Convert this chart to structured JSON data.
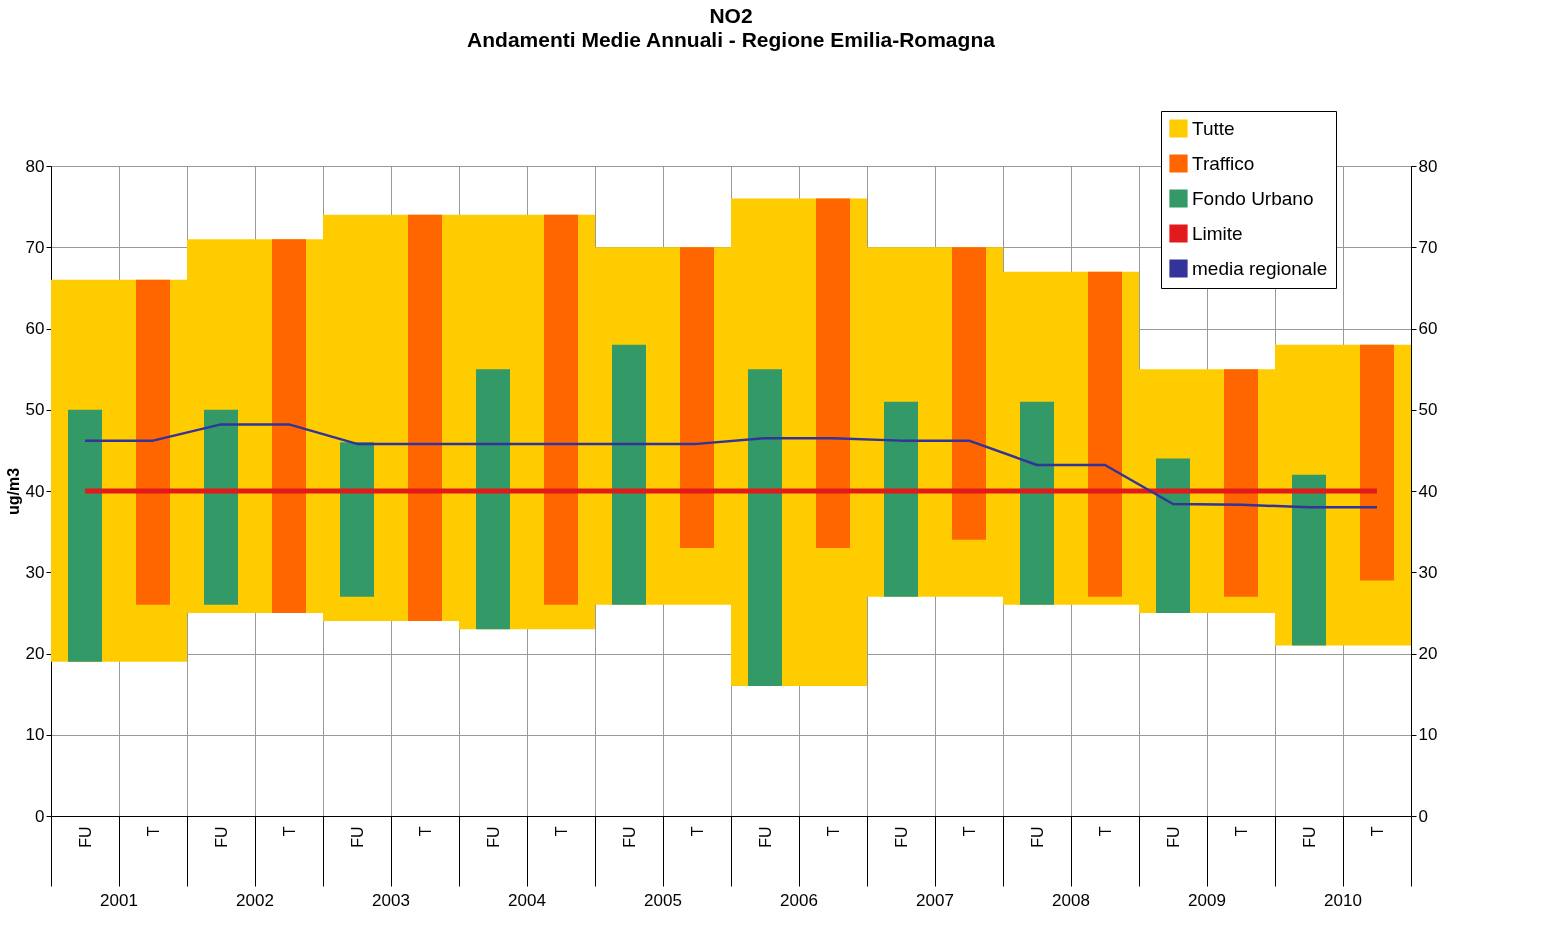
{
  "chart_data": {
    "type": "bar",
    "title": "NO2",
    "subtitle": "Andamenti Medie Annuali  - Regione Emilia-Romagna",
    "ylabel": "ug/m3",
    "categories": [
      "FU",
      "T",
      "FU",
      "T",
      "FU",
      "T",
      "FU",
      "T",
      "FU",
      "T",
      "FU",
      "T",
      "FU",
      "T",
      "FU",
      "T",
      "FU",
      "T",
      "FU",
      "T"
    ],
    "annotations": [
      "2001",
      "2002",
      "2003",
      "2004",
      "2005",
      "2006",
      "2007",
      "2008",
      "2009",
      "2010"
    ],
    "series": [
      {
        "name": "Tutte",
        "color": "#ffcc00",
        "base": [
          19,
          19,
          25,
          25,
          24,
          24,
          23,
          23,
          26,
          26,
          16,
          16,
          27,
          27,
          26,
          26,
          25,
          25,
          21,
          21
        ],
        "values": [
          47,
          47,
          46,
          46,
          50,
          50,
          51,
          51,
          44,
          44,
          60,
          60,
          43,
          43,
          41,
          41,
          30,
          30,
          37,
          37
        ]
      },
      {
        "name": "Traffico",
        "color": "#ff6600",
        "base": [
          null,
          26,
          null,
          25,
          null,
          24,
          null,
          26,
          null,
          33,
          null,
          33,
          null,
          34,
          null,
          27,
          null,
          27,
          null,
          29
        ],
        "values": [
          null,
          40,
          null,
          46,
          null,
          50,
          null,
          48,
          null,
          37,
          null,
          43,
          null,
          36,
          null,
          40,
          null,
          28,
          null,
          29
        ]
      },
      {
        "name": "Fondo Urbano",
        "color": "#339966",
        "base": [
          19,
          null,
          26,
          null,
          27,
          null,
          23,
          null,
          26,
          null,
          16,
          null,
          27,
          null,
          26,
          null,
          25,
          null,
          21,
          null
        ],
        "values": [
          31,
          null,
          24,
          null,
          19,
          null,
          32,
          null,
          32,
          null,
          39,
          null,
          24,
          null,
          25,
          null,
          19,
          null,
          21,
          null
        ]
      },
      {
        "name": "Limite",
        "type": "line",
        "color": "#e31a1c",
        "values": [
          40,
          40,
          40,
          40,
          40,
          40,
          40,
          40,
          40,
          40,
          40,
          40,
          40,
          40,
          40,
          40,
          40,
          40,
          40,
          40
        ]
      },
      {
        "name": "media regionale",
        "type": "line",
        "color": "#333399",
        "values": [
          46.2,
          46.2,
          48.2,
          48.2,
          45.8,
          45.8,
          45.8,
          45.8,
          45.8,
          45.8,
          46.5,
          46.5,
          46.2,
          46.2,
          43.2,
          43.2,
          38.4,
          38.3,
          38.0,
          38.0
        ]
      }
    ],
    "ylim": [
      0,
      80
    ],
    "yticks": [
      0,
      10,
      20,
      30,
      40,
      50,
      60,
      70,
      80
    ],
    "y2lim": [
      0,
      80
    ],
    "y2ticks": [
      0,
      10,
      20,
      30,
      40,
      50,
      60,
      70,
      80
    ],
    "grid": true,
    "legend": "top right"
  }
}
